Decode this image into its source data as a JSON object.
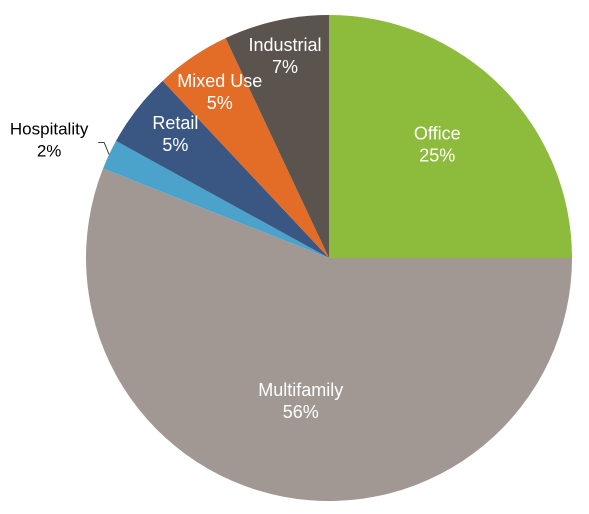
{
  "chart_data": {
    "type": "pie",
    "title": "",
    "slices": [
      {
        "name": "Office",
        "value": 25,
        "label": "25%",
        "color": "#8DBB3C",
        "label_color": "#ffffff"
      },
      {
        "name": "Multifamily",
        "value": 56,
        "label": "56%",
        "color": "#A19893",
        "label_color": "#ffffff"
      },
      {
        "name": "Hospitality",
        "value": 2,
        "label": "2%",
        "color": "#4BA3CC",
        "label_color": "#000000"
      },
      {
        "name": "Retail",
        "value": 5,
        "label": "5%",
        "color": "#3A5683",
        "label_color": "#ffffff"
      },
      {
        "name": "Mixed Use",
        "value": 5,
        "label": "5%",
        "color": "#E36C27",
        "label_color": "#ffffff"
      },
      {
        "name": "Industrial",
        "value": 7,
        "label": "7%",
        "color": "#5B534E",
        "label_color": "#ffffff"
      }
    ],
    "start_angle": "12 o'clock",
    "direction": "clockwise",
    "legend": "none",
    "label_position": "inside, except Hospitality outside with leader line"
  }
}
